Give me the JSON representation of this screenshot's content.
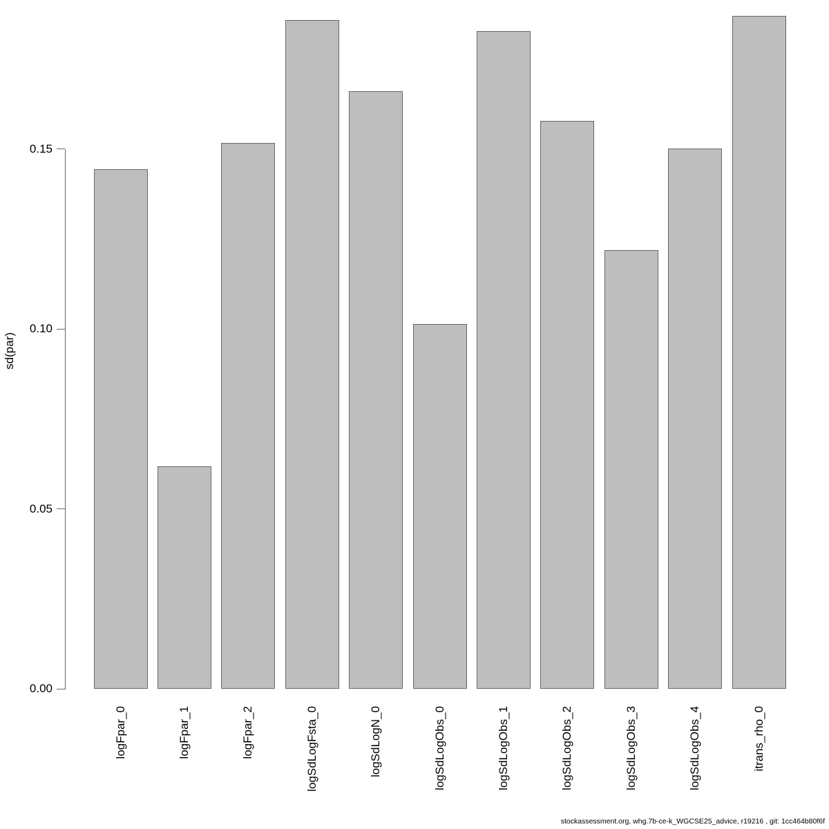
{
  "chart_data": {
    "type": "bar",
    "title": "",
    "xlabel": "",
    "ylabel": "sd(par)",
    "categories": [
      "logFpar_0",
      "logFpar_1",
      "logFpar_2",
      "logSdLogFsta_0",
      "logSdLogN_0",
      "logSdLogObs_0",
      "logSdLogObs_1",
      "logSdLogObs_2",
      "logSdLogObs_3",
      "logSdLogObs_4",
      "itrans_rho_0"
    ],
    "values": [
      0.1444,
      0.0618,
      0.1517,
      0.1859,
      0.1661,
      0.1014,
      0.1828,
      0.1579,
      0.122,
      0.1502,
      0.187
    ],
    "ylim": [
      0,
      0.19
    ],
    "yticks": [
      0,
      0.05,
      0.1,
      0.15
    ],
    "ytick_labels": [
      "0.00",
      "0.05",
      "0.10",
      "0.15"
    ],
    "grid": false,
    "legend_position": "none",
    "bar_fill_color": "#BEBEBE",
    "bar_border_color": "#666666",
    "axis_color": "#666666",
    "text_color": "#000000"
  },
  "footer": {
    "text": "stockassessment.org, whg.7b-ce-k_WGCSE25_advice, r19216 , git: 1cc464b80f6f"
  }
}
